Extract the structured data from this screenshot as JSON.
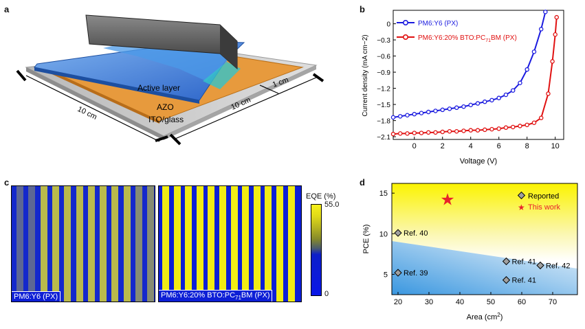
{
  "panel_labels": {
    "a": "a",
    "b": "b",
    "c": "c",
    "d": "d"
  },
  "panel_a": {
    "active_layer": "Active layer",
    "azo": "AZO",
    "ito_glass": "ITO/glass",
    "dim_left": "10 cm",
    "dim_right": "10 cm",
    "dim_coating": "1 cm",
    "colors": {
      "glass": "#c9c9c9",
      "azo": "#e89a3c",
      "active": "#3d80d8",
      "blade": "#505050"
    }
  },
  "panel_c": {
    "map_left_label": "PM6:Y6 (PX)",
    "map_right_label_pre": "PM6:Y6:20% BTO:PC",
    "map_right_label_sub": "71",
    "map_right_label_post": "BM (PX)",
    "colorbar_title": "EQE (%)",
    "colorbar_max": "55.0",
    "colorbar_min": "0"
  },
  "chart_data": [
    {
      "type": "line",
      "panel": "b",
      "xlabel": "Voltage (V)",
      "ylabel": "Current density (mA cm−2)",
      "xlim": [
        -1.5,
        10.6
      ],
      "ylim": [
        -2.15,
        0.25
      ],
      "xticks": [
        "0",
        "2",
        "4",
        "6",
        "8",
        "10"
      ],
      "yticks": [
        "0",
        "−0.3",
        "−0.6",
        "−0.9",
        "−1.2",
        "−1.5",
        "−1.8",
        "−2.1"
      ],
      "series": [
        {
          "name": "PM6:Y6 (PX)",
          "color": "#1a1adf",
          "x": [
            -1.5,
            -1,
            -0.5,
            0,
            0.5,
            1,
            1.5,
            2,
            2.5,
            3,
            3.5,
            4,
            4.5,
            5,
            5.5,
            6,
            6.5,
            7,
            7.5,
            8,
            8.5,
            9,
            9.3
          ],
          "y": [
            -1.74,
            -1.72,
            -1.7,
            -1.68,
            -1.66,
            -1.64,
            -1.62,
            -1.6,
            -1.58,
            -1.56,
            -1.54,
            -1.51,
            -1.48,
            -1.45,
            -1.42,
            -1.38,
            -1.32,
            -1.24,
            -1.1,
            -0.85,
            -0.52,
            -0.1,
            0.22
          ]
        },
        {
          "name": "PM6:Y6:20% BTO:PC71BM (PX)",
          "color": "#e01010",
          "x": [
            -1.5,
            -1,
            -0.5,
            0,
            0.5,
            1,
            1.5,
            2,
            2.5,
            3,
            3.5,
            4,
            4.5,
            5,
            5.5,
            6,
            6.5,
            7,
            7.5,
            8,
            8.5,
            9,
            9.5,
            9.8,
            10,
            10.1
          ],
          "y": [
            -2.05,
            -2.04,
            -2.04,
            -2.03,
            -2.03,
            -2.02,
            -2.02,
            -2.01,
            -2.0,
            -2.0,
            -1.99,
            -1.98,
            -1.98,
            -1.97,
            -1.96,
            -1.95,
            -1.93,
            -1.92,
            -1.9,
            -1.88,
            -1.84,
            -1.75,
            -1.3,
            -0.7,
            -0.2,
            0.12
          ]
        }
      ],
      "legend": [
        "PM6:Y6 (PX)",
        "PM6:Y6:20% BTO:PC71BM (PX)"
      ]
    },
    {
      "type": "scatter",
      "panel": "d",
      "xlabel": "Area (cm2)",
      "ylabel": "PCE (%)",
      "xlim": [
        18,
        78
      ],
      "ylim": [
        2.5,
        16.2
      ],
      "xticks": [
        "20",
        "30",
        "40",
        "50",
        "60",
        "70"
      ],
      "yticks": [
        "5",
        "10",
        "15"
      ],
      "series": [
        {
          "name": "Reported",
          "marker": "diamond",
          "points": [
            {
              "x": 20,
              "y": 10.1,
              "label": "Ref. 40"
            },
            {
              "x": 20,
              "y": 5.2,
              "label": "Ref. 39"
            },
            {
              "x": 55,
              "y": 6.6,
              "label": "Ref. 41"
            },
            {
              "x": 66,
              "y": 6.1,
              "label": "Ref. 42"
            },
            {
              "x": 55,
              "y": 4.3,
              "label": "Ref. 41"
            }
          ]
        },
        {
          "name": "This work",
          "marker": "star",
          "color": "#e8222a",
          "points": [
            {
              "x": 36,
              "y": 14.2,
              "label": ""
            }
          ]
        }
      ],
      "legend": [
        "Reported",
        "This work"
      ]
    }
  ]
}
